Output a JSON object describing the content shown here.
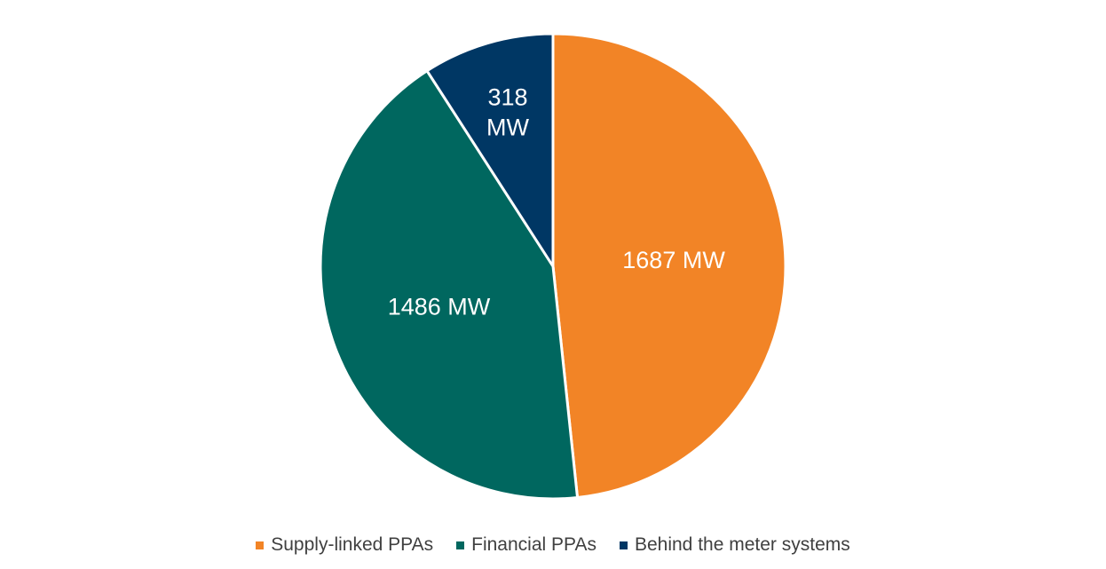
{
  "chart_data": {
    "type": "pie",
    "title": "",
    "start_angle_deg": 0,
    "direction": "clockwise",
    "legend_position": "bottom",
    "slices": [
      {
        "name": "Supply-linked PPAs",
        "value": 1687,
        "label_lines": [
          "1687 MW"
        ],
        "color": "#F28426"
      },
      {
        "name": "Financial PPAs",
        "value": 1486,
        "label_lines": [
          "1486 MW"
        ],
        "color": "#00675F"
      },
      {
        "name": "Behind the meter systems",
        "value": 318,
        "label_lines": [
          "318",
          "MW"
        ],
        "color": "#003764"
      }
    ]
  },
  "legend": {
    "items": [
      {
        "label": "Supply-linked PPAs",
        "color": "#F28426"
      },
      {
        "label": "Financial PPAs",
        "color": "#00675F"
      },
      {
        "label": "Behind the meter systems",
        "color": "#003764"
      }
    ]
  }
}
